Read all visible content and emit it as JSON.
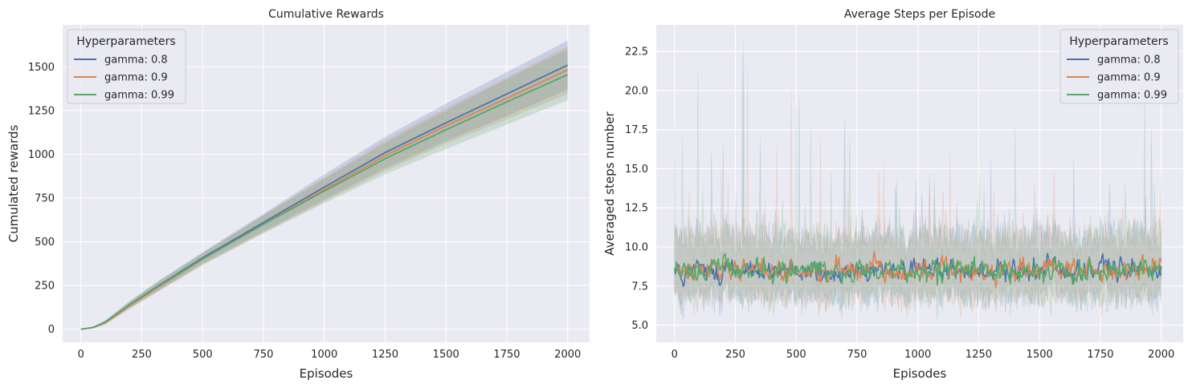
{
  "chart_data": [
    {
      "type": "line",
      "title": "Cumulative Rewards",
      "xlabel": "Episodes",
      "ylabel": "Cumulated rewards",
      "xlim": [
        -75,
        2090
      ],
      "ylim": [
        -75,
        1740
      ],
      "xticks": [
        0,
        250,
        500,
        750,
        1000,
        1250,
        1500,
        1750,
        2000
      ],
      "yticks": [
        0,
        250,
        500,
        750,
        1000,
        1250,
        1500
      ],
      "grid": true,
      "legend": {
        "title": "Hyperparameters",
        "placement": "top-left"
      },
      "series": [
        {
          "name": "gamma: 0.8",
          "color": "#4c72b0",
          "x": [
            0,
            50,
            100,
            150,
            200,
            300,
            400,
            500,
            750,
            1000,
            1250,
            1500,
            1750,
            2000
          ],
          "y": [
            0,
            10,
            40,
            90,
            140,
            232,
            320,
            408,
            610,
            812,
            1010,
            1180,
            1345,
            1510
          ],
          "band": [
            [
              0,
              0
            ],
            [
              5,
              14
            ],
            [
              30,
              50
            ],
            [
              75,
              105
            ],
            [
              120,
              160
            ],
            [
              205,
              260
            ],
            [
              290,
              350
            ],
            [
              375,
              440
            ],
            [
              560,
              660
            ],
            [
              740,
              885
            ],
            [
              920,
              1100
            ],
            [
              1075,
              1290
            ],
            [
              1220,
              1470
            ],
            [
              1370,
              1650
            ]
          ]
        },
        {
          "name": "gamma: 0.9",
          "color": "#dd8452",
          "x": [
            0,
            50,
            100,
            150,
            200,
            300,
            400,
            500,
            750,
            1000,
            1250,
            1500,
            1750,
            2000
          ],
          "y": [
            0,
            9,
            37,
            85,
            135,
            225,
            312,
            400,
            600,
            798,
            992,
            1163,
            1320,
            1483
          ],
          "band": [
            [
              0,
              0
            ],
            [
              4,
              13
            ],
            [
              26,
              48
            ],
            [
              70,
              100
            ],
            [
              115,
              155
            ],
            [
              198,
              252
            ],
            [
              282,
              342
            ],
            [
              366,
              432
            ],
            [
              550,
              650
            ],
            [
              728,
              868
            ],
            [
              905,
              1080
            ],
            [
              1060,
              1265
            ],
            [
              1200,
              1440
            ],
            [
              1345,
              1620
            ]
          ]
        },
        {
          "name": "gamma: 0.99",
          "color": "#55a868",
          "x": [
            0,
            50,
            100,
            150,
            200,
            300,
            400,
            500,
            750,
            1000,
            1250,
            1500,
            1750,
            2000
          ],
          "y": [
            0,
            10,
            40,
            90,
            140,
            230,
            316,
            402,
            600,
            790,
            975,
            1140,
            1300,
            1455
          ],
          "band": [
            [
              0,
              0
            ],
            [
              5,
              14
            ],
            [
              30,
              50
            ],
            [
              76,
              104
            ],
            [
              122,
              158
            ],
            [
              205,
              255
            ],
            [
              286,
              346
            ],
            [
              368,
              436
            ],
            [
              548,
              652
            ],
            [
              720,
              860
            ],
            [
              885,
              1065
            ],
            [
              1030,
              1250
            ],
            [
              1170,
              1430
            ],
            [
              1310,
              1600
            ]
          ]
        }
      ]
    },
    {
      "type": "line",
      "title": "Average Steps per Episode",
      "xlabel": "Episodes",
      "ylabel": "Averaged steps number",
      "xlim": [
        -75,
        2090
      ],
      "ylim": [
        3.9,
        24.2
      ],
      "xticks": [
        0,
        250,
        500,
        750,
        1000,
        1250,
        1500,
        1750,
        2000
      ],
      "yticks": [
        5.0,
        7.5,
        10.0,
        12.5,
        15.0,
        17.5,
        20.0,
        22.5
      ],
      "grid": true,
      "legend": {
        "title": "Hyperparameters",
        "placement": "top-right"
      },
      "series_summary": "noisy per-episode averages fluctuating around 8.5 steps, mostly between 6.5 and 10.5, with occasional spikes",
      "series": [
        {
          "name": "gamma: 0.8",
          "color": "#4c72b0",
          "mean": 8.5,
          "typical_range": [
            6.5,
            10.8
          ],
          "max": 22.5,
          "min": 5.0,
          "spikes": [
            [
              150,
              16.0
            ],
            [
              200,
              16.5
            ],
            [
              280,
              22.5
            ],
            [
              350,
              17.0
            ],
            [
              510,
              19.5
            ],
            [
              700,
              18.2
            ],
            [
              1300,
              15.5
            ],
            [
              1640,
              15.5
            ],
            [
              1960,
              17.5
            ]
          ]
        },
        {
          "name": "gamma: 0.9",
          "color": "#dd8452",
          "mean": 8.5,
          "typical_range": [
            6.5,
            10.8
          ],
          "max": 21.5,
          "min": 5.0,
          "spikes": [
            [
              60,
              13.5
            ],
            [
              190,
              15.0
            ],
            [
              300,
              21.5
            ],
            [
              420,
              16.5
            ],
            [
              480,
              20.0
            ],
            [
              600,
              17.0
            ],
            [
              860,
              15.5
            ],
            [
              1130,
              16.0
            ],
            [
              1560,
              15.0
            ],
            [
              2000,
              14.5
            ]
          ]
        },
        {
          "name": "gamma: 0.99",
          "color": "#55a868",
          "mean": 8.5,
          "typical_range": [
            6.5,
            10.8
          ],
          "max": 23.1,
          "min": 5.0,
          "spikes": [
            [
              0,
              18.0
            ],
            [
              30,
              17.0
            ],
            [
              95,
              21.3
            ],
            [
              285,
              23.1
            ],
            [
              500,
              19.0
            ],
            [
              560,
              17.7
            ],
            [
              720,
              17.0
            ],
            [
              1250,
              14.5
            ],
            [
              1400,
              17.7
            ],
            [
              1930,
              19.5
            ]
          ]
        }
      ]
    }
  ]
}
